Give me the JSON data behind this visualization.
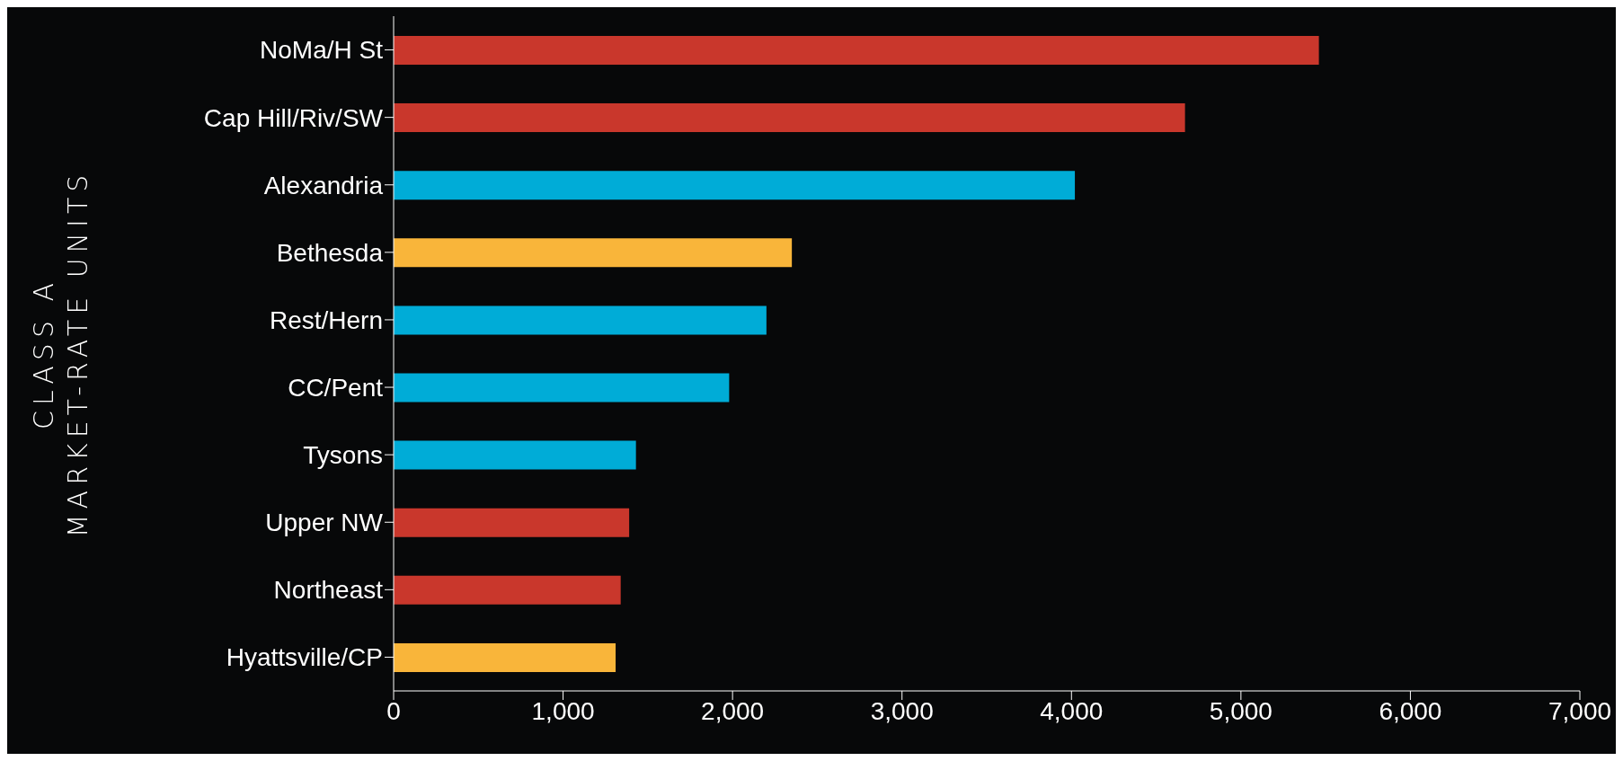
{
  "chart_data": {
    "type": "bar",
    "orientation": "horizontal",
    "ylabel": "CLASS A\nMARKET-RATE UNITS",
    "categories": [
      "NoMa/H St",
      "Cap Hill/Riv/SW",
      "Alexandria",
      "Bethesda",
      "Rest/Hern",
      "CC/Pent",
      "Tysons",
      "Upper NW",
      "Northeast",
      "Hyattsville/CP"
    ],
    "values": [
      5460,
      4670,
      4020,
      2350,
      2200,
      1980,
      1430,
      1390,
      1340,
      1310
    ],
    "colors": [
      "#c9372c",
      "#c9372c",
      "#00acd7",
      "#f9b53a",
      "#00acd7",
      "#00acd7",
      "#00acd7",
      "#c9372c",
      "#c9372c",
      "#f9b53a"
    ],
    "xlim": [
      0,
      7000
    ],
    "xticks": [
      0,
      {
        "value": 1000,
        "label": "1,000"
      },
      {
        "value": 2000,
        "label": "2,000"
      },
      {
        "value": 3000,
        "label": "3,000"
      },
      {
        "value": 4000,
        "label": "4,000"
      },
      {
        "value": 5000,
        "label": "5,000"
      },
      {
        "value": 6000,
        "label": "6,000"
      },
      {
        "value": 7000,
        "label": "7,000"
      }
    ],
    "grid": false
  }
}
